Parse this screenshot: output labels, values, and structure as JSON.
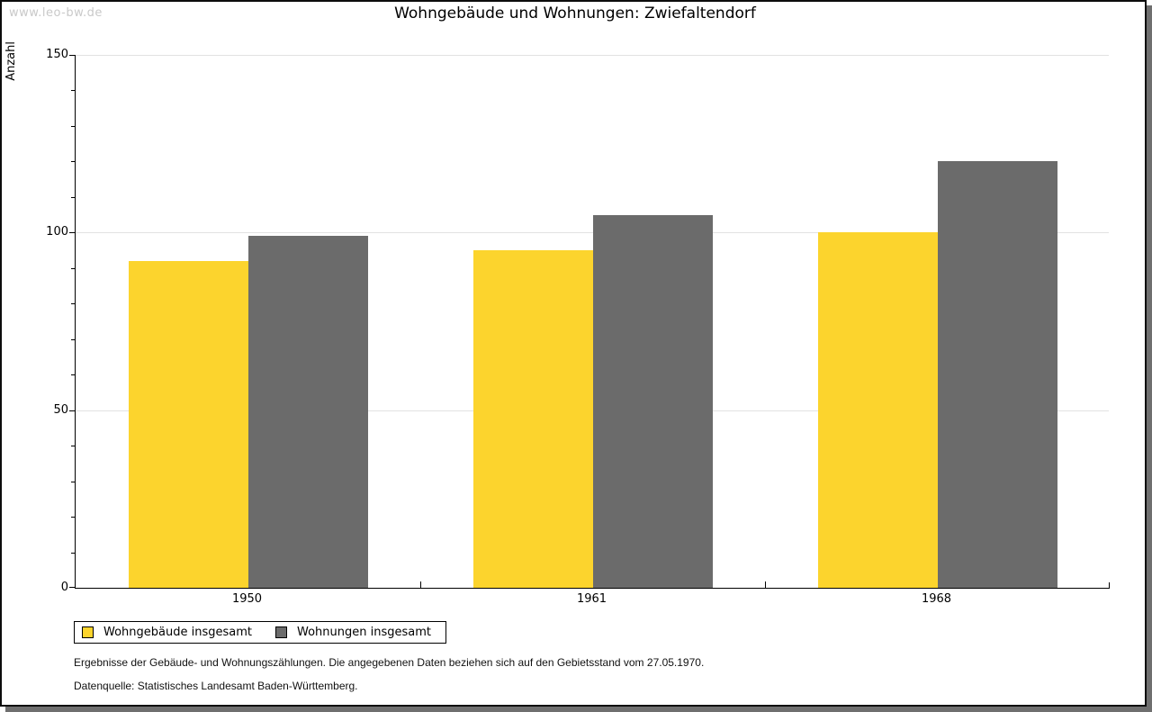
{
  "watermark": "www.leo-bw.de",
  "chart_data": {
    "type": "bar",
    "title": "Wohngebäude und Wohnungen: Zwiefaltendorf",
    "ylabel": "Anzahl",
    "xlabel": "",
    "categories": [
      "1950",
      "1961",
      "1968"
    ],
    "series": [
      {
        "name": "Wohngebäude insgesamt",
        "color": "#FCD42D",
        "values": [
          92,
          95,
          100
        ]
      },
      {
        "name": "Wohnungen insgesamt",
        "color": "#6B6B6B",
        "values": [
          99,
          105,
          120
        ]
      }
    ],
    "ylim": [
      0,
      150
    ],
    "yticks": [
      0,
      50,
      100,
      150
    ],
    "minor_tick_step": 10,
    "grid": "horizontal-major",
    "legend_position": "bottom-left"
  },
  "footnotes": {
    "line1": "Ergebnisse der Gebäude- und Wohnungszählungen. Die angegebenen Daten beziehen sich auf den Gebietsstand vom 27.05.1970.",
    "line2": "Datenquelle: Statistisches Landesamt Baden-Württemberg."
  },
  "colors": {
    "bar_yellow": "#FCD42D",
    "bar_gray": "#6B6B6B",
    "gridline": "#E2E2E2",
    "frame_shadow": "#6F6F6F",
    "watermark": "#C9C9C9"
  }
}
